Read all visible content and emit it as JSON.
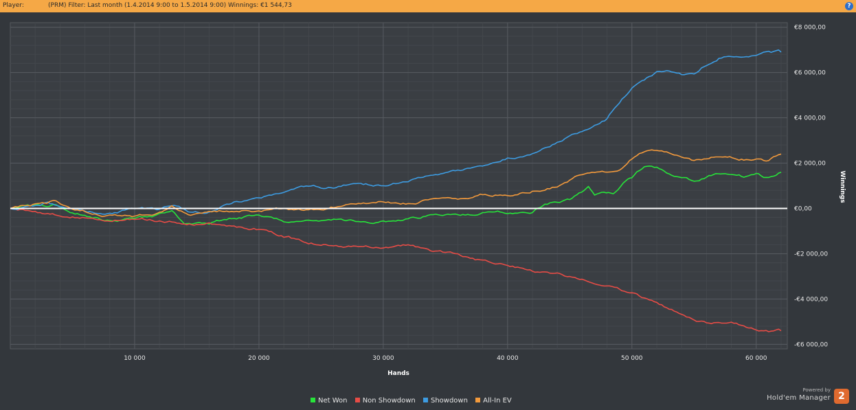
{
  "header": {
    "player_label": "Player:",
    "player_name": "",
    "filter_text": "(PRM) Filter: Last month (1.4.2014 9:00 to 1.5.2014 9:00) Winnings: €1 544,73",
    "help_icon": "?"
  },
  "colors": {
    "background": "#33373c",
    "header": "#f5a846",
    "net_won": "#27e43a",
    "non_showdown": "#e74c46",
    "showdown": "#3d9ce2",
    "all_in_ev": "#f39a3c",
    "zero_line": "#ffffff"
  },
  "legend": {
    "net_won": "Net Won",
    "non_showdown": "Non Showdown",
    "showdown": "Showdown",
    "all_in_ev": "All-In EV"
  },
  "branding": {
    "powered_by": "Powered by",
    "product": "Hold'em Manager",
    "logo_number": "2"
  },
  "chart_data": {
    "type": "line",
    "xlabel": "Hands",
    "ylabel": "Winnings",
    "xlim": [
      0,
      62500
    ],
    "ylim": [
      -6200,
      8200
    ],
    "x_ticks": [
      10000,
      20000,
      30000,
      40000,
      50000,
      60000
    ],
    "x_tick_labels": [
      "10 000",
      "20 000",
      "30 000",
      "40 000",
      "50 000",
      "60 000"
    ],
    "y_ticks": [
      8000,
      6000,
      4000,
      2000,
      0,
      -2000,
      -4000,
      -6000
    ],
    "y_tick_labels": [
      "€8 000,00",
      "€6 000,00",
      "€4 000,00",
      "€2 000,00",
      "€0,00",
      "-€2 000,00",
      "-€4 000,00",
      "-€6 000,00"
    ],
    "grid": true,
    "legend_position": "bottom",
    "series": [
      {
        "name": "Net Won",
        "color": "#27e43a",
        "points": [
          [
            0,
            0
          ],
          [
            2000,
            100
          ],
          [
            3500,
            150
          ],
          [
            5000,
            -200
          ],
          [
            8000,
            -500
          ],
          [
            10000,
            -500
          ],
          [
            12000,
            -300
          ],
          [
            13000,
            -150
          ],
          [
            14000,
            -600
          ],
          [
            16000,
            -700
          ],
          [
            18000,
            -400
          ],
          [
            20000,
            -300
          ],
          [
            22000,
            -600
          ],
          [
            24000,
            -500
          ],
          [
            26000,
            -500
          ],
          [
            28000,
            -600
          ],
          [
            30000,
            -600
          ],
          [
            32000,
            -500
          ],
          [
            34000,
            -300
          ],
          [
            36000,
            -300
          ],
          [
            38000,
            -200
          ],
          [
            40000,
            -200
          ],
          [
            42000,
            -100
          ],
          [
            43000,
            200
          ],
          [
            45000,
            400
          ],
          [
            46500,
            900
          ],
          [
            47000,
            600
          ],
          [
            48500,
            700
          ],
          [
            49500,
            1300
          ],
          [
            50000,
            1400
          ],
          [
            51000,
            1900
          ],
          [
            52000,
            1800
          ],
          [
            53000,
            1500
          ],
          [
            54000,
            1300
          ],
          [
            55000,
            1200
          ],
          [
            56000,
            1400
          ],
          [
            57500,
            1600
          ],
          [
            59000,
            1400
          ],
          [
            60000,
            1500
          ],
          [
            61000,
            1300
          ],
          [
            62000,
            1600
          ]
        ]
      },
      {
        "name": "Non Showdown",
        "color": "#e74c46",
        "points": [
          [
            0,
            0
          ],
          [
            2000,
            -150
          ],
          [
            5000,
            -350
          ],
          [
            8000,
            -450
          ],
          [
            10000,
            -500
          ],
          [
            14000,
            -600
          ],
          [
            18000,
            -800
          ],
          [
            20000,
            -900
          ],
          [
            22000,
            -1200
          ],
          [
            24000,
            -1500
          ],
          [
            27000,
            -1600
          ],
          [
            30000,
            -1700
          ],
          [
            32000,
            -1600
          ],
          [
            34000,
            -1900
          ],
          [
            36000,
            -2000
          ],
          [
            38000,
            -2300
          ],
          [
            40000,
            -2400
          ],
          [
            42000,
            -2700
          ],
          [
            44000,
            -2900
          ],
          [
            46000,
            -3100
          ],
          [
            48000,
            -3300
          ],
          [
            50000,
            -3700
          ],
          [
            52000,
            -4200
          ],
          [
            54000,
            -4700
          ],
          [
            56000,
            -5000
          ],
          [
            58000,
            -5100
          ],
          [
            59000,
            -5200
          ],
          [
            60000,
            -5300
          ],
          [
            61000,
            -5400
          ],
          [
            62000,
            -5400
          ]
        ]
      },
      {
        "name": "Showdown",
        "color": "#3d9ce2",
        "points": [
          [
            0,
            0
          ],
          [
            2000,
            100
          ],
          [
            3000,
            250
          ],
          [
            5000,
            -100
          ],
          [
            7000,
            -200
          ],
          [
            9000,
            -100
          ],
          [
            12000,
            -50
          ],
          [
            13000,
            200
          ],
          [
            14500,
            -100
          ],
          [
            16000,
            -100
          ],
          [
            18000,
            300
          ],
          [
            20000,
            500
          ],
          [
            22000,
            700
          ],
          [
            24000,
            900
          ],
          [
            26000,
            900
          ],
          [
            28000,
            1100
          ],
          [
            30000,
            1000
          ],
          [
            32000,
            1200
          ],
          [
            34000,
            1500
          ],
          [
            36000,
            1600
          ],
          [
            38000,
            1800
          ],
          [
            40000,
            2200
          ],
          [
            42000,
            2500
          ],
          [
            44000,
            2900
          ],
          [
            46000,
            3400
          ],
          [
            47000,
            3600
          ],
          [
            48000,
            3900
          ],
          [
            49000,
            4700
          ],
          [
            50000,
            5300
          ],
          [
            51000,
            5600
          ],
          [
            52000,
            6000
          ],
          [
            53000,
            6000
          ],
          [
            54000,
            5900
          ],
          [
            55000,
            6000
          ],
          [
            56000,
            6400
          ],
          [
            57000,
            6700
          ],
          [
            58000,
            6700
          ],
          [
            59000,
            6700
          ],
          [
            60000,
            6700
          ],
          [
            61000,
            6900
          ],
          [
            62000,
            6900
          ]
        ]
      },
      {
        "name": "All-In EV",
        "color": "#f39a3c",
        "points": [
          [
            0,
            0
          ],
          [
            2000,
            150
          ],
          [
            3500,
            300
          ],
          [
            5000,
            -100
          ],
          [
            8000,
            -300
          ],
          [
            10000,
            -400
          ],
          [
            12000,
            -200
          ],
          [
            13000,
            100
          ],
          [
            14500,
            -200
          ],
          [
            16000,
            -200
          ],
          [
            18000,
            -100
          ],
          [
            20000,
            -100
          ],
          [
            22000,
            0
          ],
          [
            24000,
            -50
          ],
          [
            26000,
            100
          ],
          [
            28000,
            200
          ],
          [
            30000,
            300
          ],
          [
            32000,
            200
          ],
          [
            34000,
            400
          ],
          [
            36000,
            400
          ],
          [
            38000,
            600
          ],
          [
            40000,
            600
          ],
          [
            42000,
            800
          ],
          [
            44000,
            1000
          ],
          [
            46000,
            1500
          ],
          [
            48000,
            1600
          ],
          [
            49000,
            1800
          ],
          [
            50000,
            2300
          ],
          [
            51000,
            2600
          ],
          [
            52000,
            2600
          ],
          [
            53000,
            2400
          ],
          [
            54000,
            2200
          ],
          [
            55000,
            2100
          ],
          [
            56000,
            2200
          ],
          [
            57500,
            2300
          ],
          [
            59000,
            2200
          ],
          [
            60000,
            2200
          ],
          [
            61000,
            2100
          ],
          [
            62000,
            2400
          ]
        ]
      }
    ]
  }
}
